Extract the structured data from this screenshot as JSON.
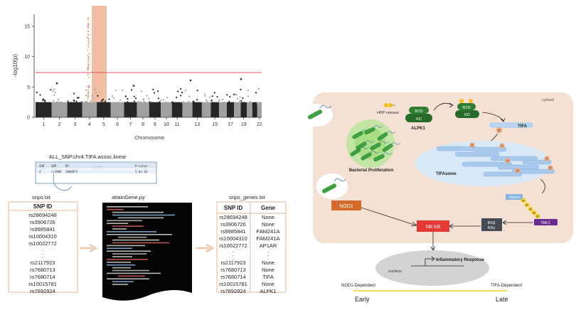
{
  "manhattan": {
    "y_label": "-log10(p)",
    "x_label": "Chromosome",
    "y_ticks": [
      "0",
      "5",
      "10",
      "15"
    ],
    "chromosomes": [
      "1",
      "2",
      "3",
      "4",
      "5",
      "6",
      "7",
      "8",
      "9",
      "10",
      "11",
      "12",
      "13",
      "14",
      "15",
      "16",
      "17",
      "18",
      "19",
      "20",
      "21",
      "22"
    ],
    "x_tick_labels": [
      "1",
      "2",
      "3",
      "4",
      "5",
      "6",
      "7",
      "8",
      "9",
      "10",
      "11",
      "13",
      "15",
      "17",
      "19",
      "22"
    ],
    "highlight_chromosome": "4",
    "significance_line": 7.3,
    "threshold_color": "#e0525a",
    "highlight_color": "#f0b79a",
    "dark_color": "#262626",
    "light_color": "#a0a0a0"
  },
  "plink": {
    "filename": "ALL_SNP.chr4.TIFA.assoc.linear",
    "headers": [
      "CHR",
      "SNP",
      "BP",
      "......",
      "P-value"
    ],
    "row": [
      "4",
      "rs3906",
      "1000874",
      "",
      "2.6e-10"
    ]
  },
  "snps_table": {
    "filename": "snps.txt",
    "header": "SNP ID",
    "rows_top": [
      "rs28694248",
      "rs3906726",
      "rs9985841",
      "rs10004310",
      "rs10022772"
    ],
    "dots": [
      "·",
      "·",
      "·"
    ],
    "rows_bottom": [
      "rs2117923",
      "rs7680713",
      "rs7680714",
      "rs10015781",
      "rs7692924"
    ]
  },
  "script": {
    "filename": "attainGene.py"
  },
  "genes_table": {
    "filename": "snps_genes.txt",
    "headers": [
      "SNP ID",
      "Gene"
    ],
    "rows_top": [
      [
        "rs28694248",
        "None"
      ],
      [
        "rs3906726",
        "None"
      ],
      [
        "rs9985841",
        "FAM241A"
      ],
      [
        "rs10004310",
        "FAM241A"
      ],
      [
        "rs10022772",
        "AP1AR"
      ]
    ],
    "dots": [
      "·",
      "·",
      "·"
    ],
    "rows_bottom": [
      [
        "rs2117923",
        "None"
      ],
      [
        "rs7680713",
        "None"
      ],
      [
        "rs7680714",
        "TIFA"
      ],
      [
        "rs10015781",
        "None"
      ],
      [
        "rs7692924",
        "ALPK1"
      ]
    ]
  },
  "pathway": {
    "cytosol": "cytosol",
    "hbp_release": "HBP release",
    "ntd": "NTD",
    "kd": "KD",
    "alpk1": "ALPK1",
    "tifa": "TIFA",
    "p": "P",
    "ub": "Ub",
    "tifasome": "TIFAsome",
    "bacterial_proliferation": "Bacterial Proliferation",
    "nod1": "NOD1",
    "nfkb": "NK-kB",
    "ikkb": "IKKβ",
    "ikky": "IKKγ",
    "traf6": "TRAF6",
    "tak1": "TAK1",
    "nucleus": "nucleus",
    "inflammatory_response": "Inflammatory Response",
    "nod1_dependent": "NOD1-Dependent",
    "tifa_dependent": "TIFA-Dependent",
    "early": "Early",
    "late": "Late",
    "cell_color": "#f5e1d4",
    "green_color": "#2e7d32",
    "orange_color": "#d36b2a",
    "red_color": "#e53935",
    "purple_color": "#6a2c91",
    "blue_color": "#7fb3e6",
    "yellow_color": "#f2d21b"
  }
}
